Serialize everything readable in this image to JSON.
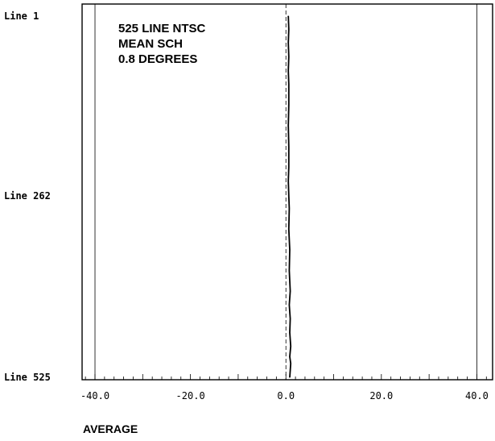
{
  "chart_data": {
    "type": "line",
    "title": "",
    "annotation": [
      "525 LINE NTSC",
      "MEAN SCH",
      "0.8 DEGREES"
    ],
    "xlabel": "AVERAGE",
    "ylabel": "",
    "xlim": [
      -42.7,
      43.3
    ],
    "ylim": [
      1,
      525
    ],
    "y_inverted": true,
    "x_ticks": [
      -40.0,
      -20.0,
      0.0,
      20.0,
      40.0
    ],
    "x_tick_labels": [
      "-40.0",
      "-20.0",
      "0.0",
      "20.0",
      "40.0"
    ],
    "y_ticks": [
      1,
      262,
      525
    ],
    "y_tick_labels": [
      "Line 1",
      "Line 262",
      "Line 525"
    ],
    "grid": {
      "vertical_at": [
        -40.0,
        40.0
      ],
      "dashed_at": [
        0.0
      ]
    },
    "series": [
      {
        "x": [
          0.5,
          0.6,
          0.5,
          0.6,
          0.5,
          0.6,
          0.6,
          0.5,
          0.6,
          0.6,
          0.5,
          0.6,
          0.7,
          0.6,
          0.8,
          0.7,
          0.9,
          0.7,
          0.9,
          0.8,
          1.0,
          0.8,
          1.0,
          0.9,
          0.8
        ],
        "y": [
          1,
          20,
          40,
          60,
          80,
          100,
          130,
          160,
          190,
          220,
          240,
          262,
          280,
          310,
          340,
          370,
          400,
          420,
          440,
          460,
          480,
          495,
          505,
          515,
          525
        ]
      }
    ]
  }
}
